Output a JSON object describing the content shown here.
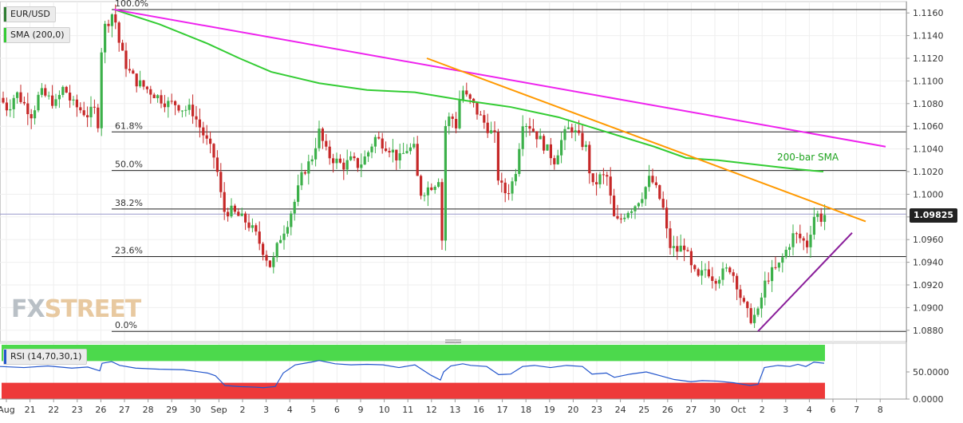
{
  "symbol_label": "EUR/USD",
  "sma_label": "SMA (200,0)",
  "rsi_label": "RSI (14,70,30,1)",
  "current_price": "1.09825",
  "logo": {
    "fx": "FX",
    "street": "STREET"
  },
  "annotations": {
    "sma_text": "200-bar SMA"
  },
  "colors": {
    "bull": "#3cb04a",
    "bear": "#c62828",
    "sma": "#33cc33",
    "resistance_long": "#ee22ee",
    "resistance_short": "#ff9900",
    "support": "#8a1e9a",
    "rsi_line": "#2255cc",
    "rsi_overbought": "#4cd94c",
    "rsi_oversold": "#ee3a3a"
  },
  "chart_data": {
    "type": "candlestick",
    "x_axis_labels": [
      "Aug",
      "21",
      "22",
      "23",
      "26",
      "27",
      "28",
      "29",
      "30",
      "Sep",
      "2",
      "3",
      "4",
      "5",
      "6",
      "9",
      "10",
      "11",
      "12",
      "13",
      "16",
      "17",
      "18",
      "19",
      "20",
      "23",
      "24",
      "25",
      "26",
      "27",
      "30",
      "Oct",
      "2",
      "3",
      "4",
      "6",
      "7",
      "8"
    ],
    "y_ticks": [
      "1.1160",
      "1.1140",
      "1.1120",
      "1.1100",
      "1.1080",
      "1.1060",
      "1.1040",
      "1.1020",
      "1.1000",
      "1.0980",
      "1.0960",
      "1.0940",
      "1.0920",
      "1.0900",
      "1.0880"
    ],
    "y_range": [
      1.087,
      1.117
    ],
    "fibonacci": [
      {
        "label": "100.0%",
        "value": 1.1163
      },
      {
        "label": "61.8%",
        "value": 1.1055
      },
      {
        "label": "50.0%",
        "value": 1.1021
      },
      {
        "label": "38.2%",
        "value": 1.0987
      },
      {
        "label": "23.6%",
        "value": 1.0945
      },
      {
        "label": "0.0%",
        "value": 1.0879
      }
    ],
    "close_path": [
      [
        0,
        1.1085
      ],
      [
        10,
        1.1075
      ],
      [
        20,
        1.109
      ],
      [
        30,
        1.108
      ],
      [
        40,
        1.107
      ],
      [
        50,
        1.109
      ],
      [
        60,
        1.1085
      ],
      [
        70,
        1.108
      ],
      [
        80,
        1.1095
      ],
      [
        90,
        1.108
      ],
      [
        100,
        1.1075
      ],
      [
        110,
        1.107
      ],
      [
        118,
        1.1075
      ],
      [
        124,
        1.106
      ],
      [
        128,
        1.1145
      ],
      [
        134,
        1.115
      ],
      [
        140,
        1.116
      ],
      [
        146,
        1.115
      ],
      [
        150,
        1.113
      ],
      [
        160,
        1.111
      ],
      [
        170,
        1.11
      ],
      [
        180,
        1.1095
      ],
      [
        190,
        1.109
      ],
      [
        200,
        1.1085
      ],
      [
        210,
        1.108
      ],
      [
        220,
        1.108
      ],
      [
        230,
        1.1075
      ],
      [
        240,
        1.1075
      ],
      [
        250,
        1.106
      ],
      [
        260,
        1.1045
      ],
      [
        270,
        1.103
      ],
      [
        280,
        1.0985
      ],
      [
        290,
        1.0985
      ],
      [
        300,
        1.098
      ],
      [
        310,
        1.0975
      ],
      [
        320,
        1.0965
      ],
      [
        330,
        1.095
      ],
      [
        340,
        1.0935
      ],
      [
        350,
        1.096
      ],
      [
        360,
        1.0975
      ],
      [
        370,
        1.0995
      ],
      [
        380,
        1.102
      ],
      [
        390,
        1.103
      ],
      [
        400,
        1.1055
      ],
      [
        410,
        1.1035
      ],
      [
        420,
        1.103
      ],
      [
        430,
        1.1025
      ],
      [
        440,
        1.103
      ],
      [
        450,
        1.1025
      ],
      [
        460,
        1.1035
      ],
      [
        470,
        1.105
      ],
      [
        480,
        1.1045
      ],
      [
        490,
        1.104
      ],
      [
        500,
        1.103
      ],
      [
        510,
        1.104
      ],
      [
        520,
        1.104
      ],
      [
        525,
        1.1
      ],
      [
        535,
        1.1005
      ],
      [
        545,
        1.101
      ],
      [
        550,
        1.1015
      ],
      [
        554,
        1.096
      ],
      [
        558,
        1.106
      ],
      [
        565,
        1.107
      ],
      [
        572,
        1.106
      ],
      [
        578,
        1.1095
      ],
      [
        585,
        1.1085
      ],
      [
        592,
        1.108
      ],
      [
        600,
        1.107
      ],
      [
        610,
        1.106
      ],
      [
        620,
        1.105
      ],
      [
        625,
        1.101
      ],
      [
        635,
        1.1
      ],
      [
        645,
        1.1015
      ],
      [
        655,
        1.1065
      ],
      [
        665,
        1.106
      ],
      [
        675,
        1.105
      ],
      [
        685,
        1.104
      ],
      [
        695,
        1.103
      ],
      [
        705,
        1.105
      ],
      [
        715,
        1.106
      ],
      [
        725,
        1.105
      ],
      [
        735,
        1.104
      ],
      [
        742,
        1.1005
      ],
      [
        752,
        1.1015
      ],
      [
        762,
        1.1015
      ],
      [
        768,
        1.098
      ],
      [
        775,
        1.0975
      ],
      [
        785,
        1.0985
      ],
      [
        795,
        1.099
      ],
      [
        805,
        1.1
      ],
      [
        815,
        1.1015
      ],
      [
        825,
        1.1
      ],
      [
        832,
        1.0985
      ],
      [
        838,
        1.0955
      ],
      [
        848,
        1.095
      ],
      [
        858,
        1.0955
      ],
      [
        866,
        1.0935
      ],
      [
        875,
        1.0925
      ],
      [
        885,
        1.0935
      ],
      [
        895,
        1.0925
      ],
      [
        905,
        1.093
      ],
      [
        915,
        1.0935
      ],
      [
        922,
        1.0925
      ],
      [
        930,
        1.0905
      ],
      [
        940,
        1.089
      ],
      [
        950,
        1.0895
      ],
      [
        958,
        1.092
      ],
      [
        965,
        1.093
      ],
      [
        975,
        1.0935
      ],
      [
        985,
        1.095
      ],
      [
        995,
        1.0965
      ],
      [
        1005,
        1.096
      ],
      [
        1012,
        1.0955
      ],
      [
        1018,
        1.0975
      ],
      [
        1022,
        1.0985
      ],
      [
        1028,
        1.0978
      ],
      [
        1033,
        1.0982
      ]
    ],
    "sma_200": [
      [
        143,
        1.1163
      ],
      [
        200,
        1.115
      ],
      [
        260,
        1.1133
      ],
      [
        300,
        1.112
      ],
      [
        340,
        1.1108
      ],
      [
        400,
        1.1098
      ],
      [
        460,
        1.1092
      ],
      [
        520,
        1.109
      ],
      [
        580,
        1.1083
      ],
      [
        640,
        1.1077
      ],
      [
        700,
        1.1068
      ],
      [
        760,
        1.1055
      ],
      [
        820,
        1.1042
      ],
      [
        860,
        1.1032
      ],
      [
        900,
        1.103
      ],
      [
        950,
        1.1026
      ],
      [
        1000,
        1.1022
      ],
      [
        1032,
        1.102
      ]
    ],
    "trendlines": [
      {
        "name": "long-resistance",
        "from": [
          143,
          1.1163
        ],
        "to": [
          1110,
          1.1042
        ]
      },
      {
        "name": "short-resistance",
        "from": [
          535,
          1.112
        ],
        "to": [
          1085,
          1.0976
        ]
      },
      {
        "name": "rising-support",
        "from": [
          950,
          1.0879
        ],
        "to": [
          1068,
          1.0966
        ]
      }
    ],
    "rsi": {
      "y_ticks": [
        "50.0000",
        "0.0000"
      ],
      "y_range": [
        0,
        100
      ],
      "bands": {
        "overbought": 70,
        "oversold": 30
      },
      "points": [
        [
          0,
          60
        ],
        [
          30,
          58
        ],
        [
          60,
          61
        ],
        [
          90,
          57
        ],
        [
          110,
          59
        ],
        [
          125,
          52
        ],
        [
          128,
          66
        ],
        [
          140,
          69
        ],
        [
          150,
          62
        ],
        [
          170,
          57
        ],
        [
          200,
          55
        ],
        [
          230,
          54
        ],
        [
          260,
          48
        ],
        [
          270,
          43
        ],
        [
          282,
          25
        ],
        [
          300,
          23
        ],
        [
          320,
          22
        ],
        [
          330,
          21
        ],
        [
          345,
          23
        ],
        [
          355,
          48
        ],
        [
          370,
          63
        ],
        [
          390,
          68
        ],
        [
          400,
          71
        ],
        [
          420,
          65
        ],
        [
          440,
          63
        ],
        [
          460,
          64
        ],
        [
          480,
          63
        ],
        [
          500,
          58
        ],
        [
          520,
          63
        ],
        [
          540,
          44
        ],
        [
          552,
          35
        ],
        [
          556,
          50
        ],
        [
          565,
          61
        ],
        [
          580,
          65
        ],
        [
          590,
          62
        ],
        [
          610,
          60
        ],
        [
          625,
          45
        ],
        [
          640,
          46
        ],
        [
          655,
          60
        ],
        [
          670,
          62
        ],
        [
          690,
          58
        ],
        [
          710,
          62
        ],
        [
          730,
          60
        ],
        [
          742,
          46
        ],
        [
          760,
          48
        ],
        [
          770,
          40
        ],
        [
          790,
          46
        ],
        [
          810,
          50
        ],
        [
          830,
          42
        ],
        [
          845,
          36
        ],
        [
          866,
          32
        ],
        [
          880,
          34
        ],
        [
          900,
          33
        ],
        [
          920,
          30
        ],
        [
          940,
          25
        ],
        [
          950,
          27
        ],
        [
          958,
          58
        ],
        [
          975,
          62
        ],
        [
          990,
          60
        ],
        [
          1000,
          64
        ],
        [
          1010,
          60
        ],
        [
          1020,
          68
        ],
        [
          1033,
          66
        ]
      ]
    }
  }
}
